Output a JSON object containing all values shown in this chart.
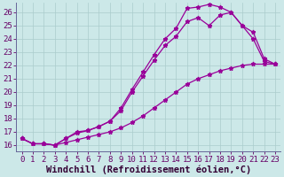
{
  "xlabel": "Windchill (Refroidissement éolien,°C)",
  "background_color": "#cce8e8",
  "line_color": "#990099",
  "xlim": [
    -0.5,
    23.5
  ],
  "ylim": [
    15.5,
    26.7
  ],
  "yticks": [
    16,
    17,
    18,
    19,
    20,
    21,
    22,
    23,
    24,
    25,
    26
  ],
  "xticks": [
    0,
    1,
    2,
    3,
    4,
    5,
    6,
    7,
    8,
    9,
    10,
    11,
    12,
    13,
    14,
    15,
    16,
    17,
    18,
    19,
    20,
    21,
    22,
    23
  ],
  "curve1_x": [
    0,
    1,
    2,
    3,
    4,
    5,
    6,
    7,
    8,
    9,
    10,
    11,
    12,
    13,
    14,
    15,
    16,
    17,
    18,
    19,
    20,
    21,
    22,
    23
  ],
  "curve1_y": [
    16.5,
    16.1,
    16.1,
    16.0,
    16.5,
    17.0,
    17.1,
    17.4,
    17.8,
    18.8,
    20.2,
    21.5,
    22.8,
    24.0,
    24.8,
    26.3,
    26.4,
    26.6,
    26.4,
    26.0,
    25.0,
    24.5,
    22.5,
    22.1
  ],
  "curve2_x": [
    0,
    1,
    2,
    3,
    4,
    5,
    6,
    7,
    8,
    9,
    10,
    11,
    12,
    13,
    14,
    15,
    16,
    17,
    18,
    19,
    20,
    21,
    22,
    23
  ],
  "curve2_y": [
    16.5,
    16.1,
    16.1,
    16.0,
    16.5,
    16.9,
    17.1,
    17.4,
    17.8,
    18.6,
    20.0,
    21.2,
    22.4,
    23.5,
    24.2,
    25.3,
    25.6,
    25.0,
    25.8,
    26.0,
    25.0,
    24.0,
    22.3,
    22.1
  ],
  "curve3_x": [
    0,
    1,
    2,
    3,
    4,
    5,
    6,
    7,
    8,
    9,
    10,
    11,
    12,
    13,
    14,
    15,
    16,
    17,
    18,
    19,
    20,
    21,
    22,
    23
  ],
  "curve3_y": [
    16.5,
    16.1,
    16.1,
    16.0,
    16.2,
    16.4,
    16.6,
    16.8,
    17.0,
    17.3,
    17.7,
    18.2,
    18.8,
    19.4,
    20.0,
    20.6,
    21.0,
    21.3,
    21.6,
    21.8,
    22.0,
    22.1,
    22.1,
    22.1
  ],
  "grid_color": "#aacccc",
  "tick_fontsize": 6.5,
  "xlabel_fontsize": 7.5
}
